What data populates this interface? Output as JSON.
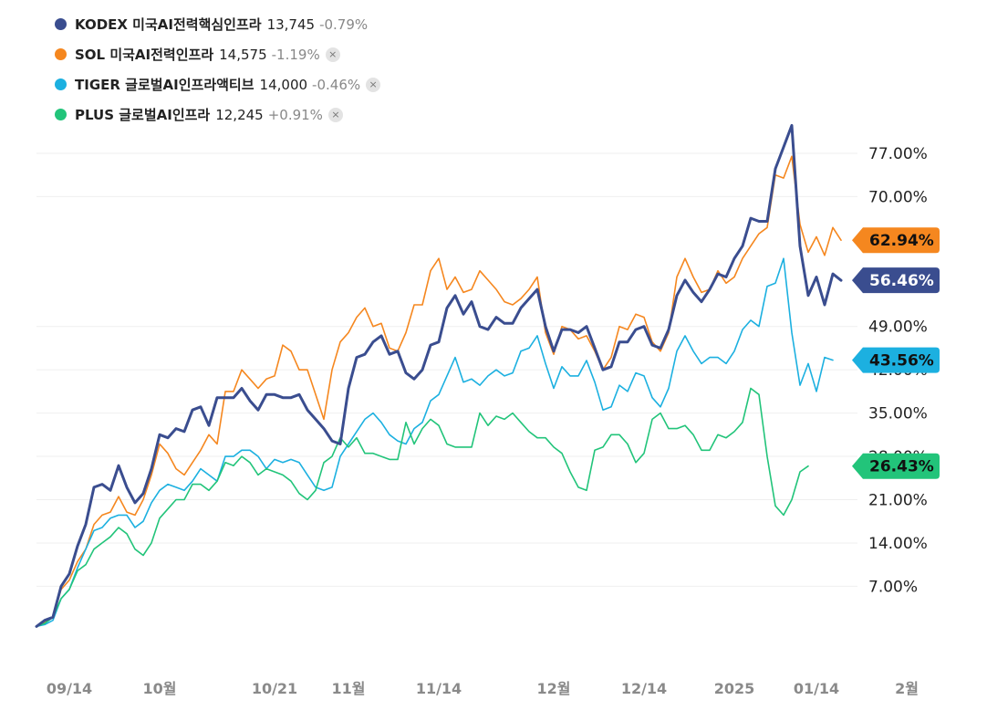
{
  "legend": [
    {
      "name": "KODEX 미국AI전력핵심인프라",
      "price": "13,745",
      "change": "-0.79%",
      "color": "#3a4d8f",
      "closable": false
    },
    {
      "name": "SOL 미국AI전력인프라",
      "price": "14,575",
      "change": "-1.19%",
      "color": "#f5871f",
      "closable": true
    },
    {
      "name": "TIGER 글로벌AI인프라액티브",
      "price": "14,000",
      "change": "-0.46%",
      "color": "#1cb0e0",
      "closable": true
    },
    {
      "name": "PLUS 글로벌AI인프라",
      "price": "12,245",
      "change": "+0.91%",
      "color": "#22c47a",
      "closable": true
    }
  ],
  "close_glyph": "×",
  "chart_data": {
    "type": "line",
    "y_unit": "%",
    "ylim": [
      -1.5,
      88.5
    ],
    "y_ticks": [
      "7.00%",
      "14.00%",
      "21.00%",
      "28.00%",
      "35.00%",
      "42.00%",
      "49.00%",
      "70.00%",
      "77.00%"
    ],
    "x_ticks": [
      {
        "label": "09/14",
        "i": 4
      },
      {
        "label": "10월",
        "i": 15
      },
      {
        "label": "10/21",
        "i": 29
      },
      {
        "label": "11월",
        "i": 38
      },
      {
        "label": "11/14",
        "i": 49
      },
      {
        "label": "12월",
        "i": 63
      },
      {
        "label": "12/14",
        "i": 74
      },
      {
        "label": "2025",
        "i": 85
      },
      {
        "label": "01/14",
        "i": 95
      },
      {
        "label": "2월",
        "i": 106
      }
    ],
    "grid": true,
    "legend_position": "top-left",
    "series": [
      {
        "name": "KODEX 미국AI전력핵심인프라",
        "color": "#3a4d8f",
        "width": 3,
        "last_label": "56.46%",
        "values": [
          0.5,
          1.5,
          2,
          7,
          9,
          13.5,
          17,
          23,
          23.5,
          22.5,
          26.5,
          23,
          20.5,
          22,
          26,
          31.5,
          31,
          32.5,
          32,
          35.5,
          36,
          33,
          37.5,
          37.5,
          37.5,
          39,
          37,
          35.5,
          38,
          38,
          37.5,
          37.5,
          38,
          35.5,
          34,
          32.5,
          30.5,
          30,
          39,
          44,
          44.5,
          46.5,
          47.5,
          44.5,
          45,
          41.5,
          40.5,
          42,
          46,
          46.5,
          52,
          54,
          51,
          53,
          49,
          48.5,
          50.5,
          49.5,
          49.5,
          52,
          53.5,
          55,
          49,
          45,
          48.5,
          48.5,
          48,
          49,
          45.5,
          42,
          42.5,
          46.5,
          46.5,
          48.5,
          49,
          46,
          45.5,
          48.5,
          54,
          56.5,
          54.5,
          53,
          55,
          57.5,
          57,
          60,
          62,
          66.5,
          66,
          66,
          74.5,
          78,
          81.5,
          62,
          54,
          57,
          52.5,
          57.5,
          56.46
        ]
      },
      {
        "name": "SOL 미국AI전력인프라",
        "color": "#f5871f",
        "width": 1.6,
        "last_label": "62.94%",
        "values": [
          0.5,
          1.2,
          2,
          6.5,
          8,
          11,
          13,
          17,
          18.5,
          19,
          21.5,
          19,
          18.5,
          21,
          25,
          30,
          28.5,
          26,
          25,
          27,
          29,
          31.5,
          30,
          38.5,
          38.5,
          42,
          40.5,
          39,
          40.5,
          41,
          46,
          45,
          42,
          42,
          38,
          34,
          42,
          46.5,
          48,
          50.5,
          52,
          49,
          49.5,
          45.5,
          45,
          48,
          52.5,
          52.5,
          58,
          60,
          55,
          57,
          54.5,
          55,
          58,
          56.5,
          55,
          53,
          52.5,
          53.5,
          55,
          57,
          48,
          44.5,
          49,
          48.5,
          47,
          47.5,
          45,
          42,
          44,
          49,
          48.5,
          51,
          50.5,
          46.5,
          45,
          48,
          57,
          60,
          57,
          54.5,
          55,
          58,
          56,
          57,
          60,
          62,
          64,
          65,
          73.5,
          73,
          76.5,
          65.5,
          61,
          63.5,
          60.5,
          65,
          62.94
        ]
      },
      {
        "name": "TIGER 글로벌AI인프라액티브",
        "color": "#1cb0e0",
        "width": 1.6,
        "last_label": "43.56%",
        "values": [
          0.5,
          0.8,
          1.5,
          5,
          6.5,
          10,
          13,
          16,
          16.5,
          18,
          18.5,
          18.5,
          16.5,
          17.5,
          20.5,
          22.5,
          23.5,
          23,
          22.5,
          24,
          26,
          25,
          24,
          28,
          28,
          29,
          29,
          28,
          26,
          27.5,
          27,
          27.5,
          27,
          25,
          23,
          22.5,
          23,
          28,
          30,
          32,
          34,
          35,
          33.5,
          31.5,
          30.5,
          30,
          32.5,
          33.5,
          37,
          38,
          41,
          44,
          40,
          40.5,
          39.5,
          41,
          42,
          41,
          41.5,
          45,
          45.5,
          47.5,
          43,
          39,
          42.5,
          41,
          41,
          43.5,
          40,
          35.5,
          36,
          39.5,
          38.5,
          41.5,
          41,
          37.5,
          36,
          39,
          45,
          47.5,
          45,
          43,
          44,
          44,
          43,
          45,
          48.5,
          50,
          49,
          55.5,
          56,
          60,
          48,
          39.5,
          43,
          38.5,
          44,
          43.56
        ]
      },
      {
        "name": "PLUS 글로벌AI인프라",
        "color": "#22c47a",
        "width": 1.6,
        "last_label": "26.43%",
        "values": [
          0.5,
          1,
          2,
          5,
          6.5,
          9.5,
          10.5,
          13,
          14,
          15,
          16.5,
          15.5,
          13,
          12,
          14,
          18,
          19.5,
          21,
          21,
          23.5,
          23.5,
          22.5,
          24,
          27,
          26.5,
          28,
          27,
          25,
          26,
          25.5,
          25,
          24,
          22,
          21,
          22.5,
          27,
          28,
          31,
          29.5,
          31,
          28.5,
          28.5,
          28,
          27.5,
          27.5,
          33.5,
          30,
          32.5,
          34,
          33,
          30,
          29.5,
          29.5,
          29.5,
          35,
          33,
          34.5,
          34,
          35,
          33.5,
          32,
          31,
          31,
          29.5,
          28.5,
          25.5,
          23,
          22.5,
          29,
          29.5,
          31.5,
          31.5,
          30,
          27,
          28.5,
          34,
          35,
          32.5,
          32.5,
          33,
          31.5,
          29,
          29,
          31.5,
          31,
          32,
          33.5,
          39,
          38,
          28,
          20,
          18.5,
          21,
          25.5,
          26.43
        ]
      }
    ]
  }
}
